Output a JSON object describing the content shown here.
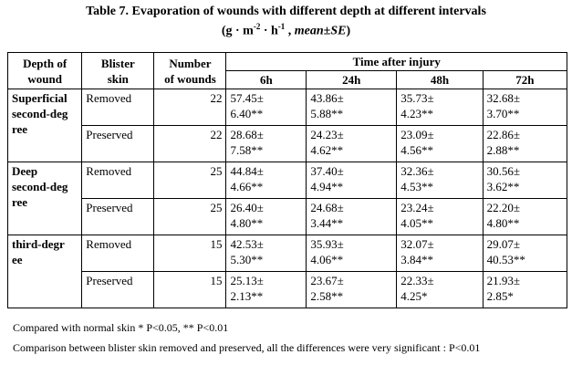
{
  "title": "Table 7. Evaporation of wounds with different depth at different intervals",
  "subtitle": {
    "prefix": "(g · m",
    "exp1": "-2",
    "mid": " · h",
    "exp2": "-1",
    "sep": " , ",
    "stat": "mean±SE",
    "suffix": ")"
  },
  "table": {
    "header": {
      "depth": "Depth of\nwound",
      "blister": "Blister\nskin",
      "number": "Number\nof wounds",
      "time": "Time after injury",
      "intervals": [
        "6h",
        "24h",
        "48h",
        "72h"
      ]
    },
    "groups": [
      {
        "depth": "Superficial\nsecond-deg\nree",
        "rows": [
          {
            "blister": "Removed",
            "n": 22,
            "values": [
              "57.45±\n6.40**",
              "43.86±\n5.88**",
              "35.73±\n4.23**",
              "32.68±\n3.70**"
            ]
          },
          {
            "blister": "Preserved",
            "n": 22,
            "values": [
              "28.68±\n7.58**",
              "24.23±\n4.62**",
              "23.09±\n4.56**",
              "22.86±\n2.88**"
            ]
          }
        ]
      },
      {
        "depth": "Deep\nsecond-deg\nree",
        "rows": [
          {
            "blister": "Removed",
            "n": 25,
            "values": [
              "44.84±\n4.66**",
              "37.40±\n4.94**",
              "32.36±\n4.53**",
              "30.56±\n3.62**"
            ]
          },
          {
            "blister": "Preserved",
            "n": 25,
            "values": [
              "26.40±\n4.80**",
              "24.68±\n3.44**",
              "23.24±\n4.05**",
              "22.20±\n4.80**"
            ]
          }
        ]
      },
      {
        "depth": "third-degr\nee",
        "rows": [
          {
            "blister": "Removed",
            "n": 15,
            "values": [
              "42.53±\n5.30**",
              "35.93±\n4.06**",
              "32.07±\n3.84**",
              "29.07±\n40.53**"
            ]
          },
          {
            "blister": "Preserved",
            "n": 15,
            "values": [
              "25.13±\n2.13**",
              "23.67±\n2.58**",
              "22.33±\n4.25*",
              "21.93±\n2.85*"
            ]
          }
        ]
      }
    ]
  },
  "notes": [
    "Compared with normal skin * P<0.05, ** P<0.01",
    "Comparison between blister skin removed and preserved, all the differences were  very significant : P<0.01"
  ]
}
